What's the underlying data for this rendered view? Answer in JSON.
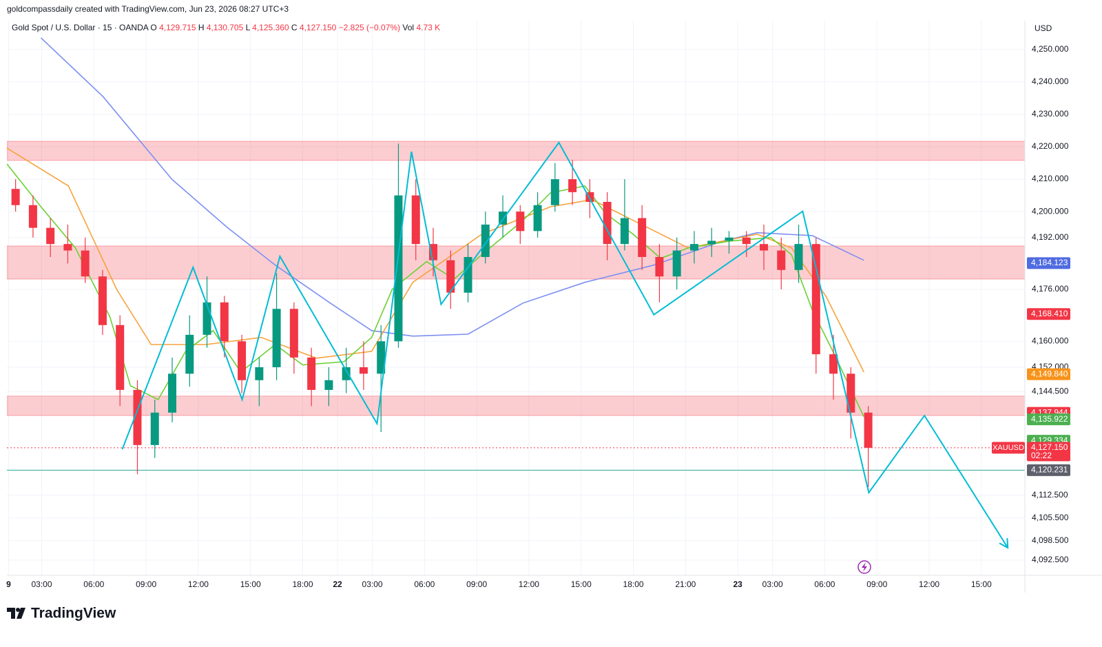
{
  "header": {
    "attribution": "goldcompassdaily created with TradingView.com, Jun 23, 2026 08:27 UTC+3"
  },
  "legend": {
    "symbol": "Gold Spot / U.S. Dollar · 15 · OANDA",
    "fields": [
      {
        "key": "O",
        "value": "4,129.715"
      },
      {
        "key": "H",
        "value": "4,130.705"
      },
      {
        "key": "L",
        "value": "4,125.360"
      },
      {
        "key": "C",
        "value": "4,127.150"
      }
    ],
    "change": "−2.825 (−0.07%)",
    "vol_key": "Vol",
    "vol": "4.73 K"
  },
  "chart_data": {
    "type": "candlestick",
    "currency": "USD",
    "x": [
      0.5,
      1.5,
      2.5,
      3.5,
      4.5,
      5.5,
      6.5,
      7.5,
      8.5,
      9.5,
      10.5,
      11.5,
      12.5,
      13.5,
      14.5,
      15.5,
      16.5,
      17.5,
      18.5,
      19.5,
      20.5,
      21.5,
      22.5,
      23.5,
      24.5,
      25.5,
      26.5,
      27.5,
      28.5,
      29.5,
      30.5,
      31.5,
      32.5,
      33.5,
      34.5,
      35.5,
      36.5,
      37.5,
      38.5,
      39.5,
      40.5,
      41.5,
      42.5,
      43.5,
      44.5,
      45.5,
      46.5,
      47.5,
      48.5,
      49.5
    ],
    "open": [
      4207,
      4202,
      4195,
      4190,
      4188,
      4180,
      4165,
      4145,
      4128,
      4138,
      4150,
      4162,
      4172,
      4160,
      4148,
      4152,
      4170,
      4155,
      4145,
      4148,
      4152,
      4150,
      4160,
      4205,
      4190,
      4185,
      4175,
      4186,
      4196,
      4200,
      4194,
      4202,
      4210,
      4206,
      4203,
      4190,
      4198,
      4186,
      4180,
      4188,
      4190,
      4191,
      4192,
      4190,
      4188,
      4182,
      4190,
      4156,
      4150,
      4138
    ],
    "high": [
      4210,
      4205,
      4198,
      4196,
      4192,
      4182,
      4168,
      4148,
      4142,
      4155,
      4168,
      4180,
      4174,
      4162,
      4155,
      4181,
      4172,
      4158,
      4152,
      4158,
      4160,
      4165,
      4221,
      4210,
      4195,
      4188,
      4190,
      4200,
      4205,
      4202,
      4206,
      4215,
      4216,
      4210,
      4206,
      4210,
      4202,
      4190,
      4192,
      4194,
      4195,
      4194,
      4194,
      4196,
      4192,
      4196,
      4192,
      4162,
      4152,
      4140
    ],
    "low": [
      4200,
      4192,
      4186,
      4184,
      4178,
      4162,
      4140,
      4119,
      4124,
      4135,
      4146,
      4158,
      4155,
      4144,
      4140,
      4148,
      4150,
      4140,
      4140,
      4144,
      4145,
      4132,
      4158,
      4185,
      4180,
      4170,
      4172,
      4184,
      4192,
      4190,
      4192,
      4200,
      4202,
      4198,
      4185,
      4188,
      4182,
      4172,
      4176,
      4184,
      4186,
      4187,
      4186,
      4182,
      4176,
      4178,
      4150,
      4142,
      4130,
      4115
    ],
    "close": [
      4202,
      4195,
      4190,
      4188,
      4180,
      4165,
      4145,
      4128,
      4138,
      4150,
      4162,
      4172,
      4160,
      4148,
      4152,
      4170,
      4155,
      4145,
      4148,
      4152,
      4150,
      4160,
      4205,
      4190,
      4185,
      4175,
      4186,
      4196,
      4200,
      4194,
      4202,
      4210,
      4206,
      4203,
      4190,
      4198,
      4186,
      4180,
      4188,
      4190,
      4191,
      4192,
      4190,
      4188,
      4182,
      4190,
      4156,
      4150,
      4138,
      4127.15
    ],
    "up_color": "#089981",
    "down_color": "#f23645",
    "xlim": [
      0,
      58.5
    ],
    "xticks": [
      {
        "value": 0.1,
        "label": "9"
      },
      {
        "value": 2,
        "label": "03:00"
      },
      {
        "value": 5,
        "label": "06:00"
      },
      {
        "value": 8,
        "label": "09:00"
      },
      {
        "value": 11,
        "label": "12:00"
      },
      {
        "value": 14,
        "label": "15:00"
      },
      {
        "value": 17,
        "label": "18:00"
      },
      {
        "value": 19,
        "label": "22"
      },
      {
        "value": 21,
        "label": "03:00"
      },
      {
        "value": 24,
        "label": "06:00"
      },
      {
        "value": 27,
        "label": "09:00"
      },
      {
        "value": 30,
        "label": "12:00"
      },
      {
        "value": 33,
        "label": "15:00"
      },
      {
        "value": 36,
        "label": "18:00"
      },
      {
        "value": 39,
        "label": "21:00"
      },
      {
        "value": 42,
        "label": "23"
      },
      {
        "value": 44,
        "label": "03:00"
      },
      {
        "value": 47,
        "label": "06:00"
      },
      {
        "value": 50,
        "label": "09:00"
      },
      {
        "value": 53,
        "label": "12:00"
      },
      {
        "value": 56,
        "label": "15:00"
      }
    ],
    "ylim": [
      4087.8,
      4258.9
    ],
    "yticks": [
      {
        "value": 4250,
        "label": "4,250.000"
      },
      {
        "value": 4240,
        "label": "4,240.000"
      },
      {
        "value": 4230,
        "label": "4,230.000"
      },
      {
        "value": 4220,
        "label": "4,220.000"
      },
      {
        "value": 4210,
        "label": "4,210.000"
      },
      {
        "value": 4200,
        "label": "4,200.000"
      },
      {
        "value": 4192,
        "label": "4,192.000"
      },
      {
        "value": 4176,
        "label": "4,176.000"
      },
      {
        "value": 4160,
        "label": "4,160.000"
      },
      {
        "value": 4152,
        "label": "4,152.000"
      },
      {
        "value": 4144.5,
        "label": "4,144.500"
      },
      {
        "value": 4112.5,
        "label": "4,112.500"
      },
      {
        "value": 4105.5,
        "label": "4,105.500"
      },
      {
        "value": 4098.5,
        "label": "4,098.500"
      },
      {
        "value": 4092.5,
        "label": "4,092.500"
      }
    ],
    "grid": true,
    "zone_color": "#f23645",
    "zones": [
      {
        "top": 4221.7,
        "bottom": 4215.8
      },
      {
        "top": 4189.4,
        "bottom": 4179.2
      },
      {
        "top": 4143.1,
        "bottom": 4137.1
      }
    ],
    "overlays": [
      {
        "color": "#7b8ff2",
        "x": [
          1.96,
          5.52,
          9.48,
          12.65,
          15.42,
          18.58,
          20.96,
          23.33,
          26.5,
          29.66,
          33.22,
          37.18,
          41.14,
          43.12,
          46.28,
          49.25
        ],
        "values": [
          4253.6,
          4235.5,
          4210,
          4195.2,
          4183.5,
          4171.8,
          4163.3,
          4161.6,
          4162.2,
          4171.8,
          4178.2,
          4183.5,
          4190.9,
          4193.5,
          4192.6,
          4185.0
        ]
      },
      {
        "color": "#f7a23b",
        "x": [
          0,
          3.54,
          6.31,
          8.29,
          11.46,
          14.62,
          17.79,
          20.96,
          23.33,
          27.29,
          31.24,
          33.62,
          35.99,
          39.16,
          43.12,
          45.09,
          47.07,
          49.25
        ],
        "values": [
          4219.6,
          4207.9,
          4176.0,
          4159.0,
          4159.0,
          4161.2,
          4154.8,
          4156.9,
          4178.2,
          4193.0,
          4201.5,
          4203.7,
          4197.3,
          4188.8,
          4193.0,
          4188.8,
          4173.9,
          4150.5
        ]
      },
      {
        "color": "#6ad132",
        "x": [
          0,
          1.96,
          3.94,
          5.92,
          7.1,
          8.69,
          10.27,
          11.85,
          13.44,
          15.42,
          17.0,
          19.37,
          20.96,
          22.14,
          24.12,
          25.7,
          27.29,
          29.66,
          31.24,
          33.22,
          34.41,
          35.99,
          37.57,
          39.16,
          41.53,
          43.91,
          45.09,
          46.28,
          47.47,
          49.25
        ],
        "values": [
          4214.7,
          4201.5,
          4188.8,
          4167.5,
          4146.3,
          4142.0,
          4156.9,
          4163.3,
          4150.5,
          4159.0,
          4152.7,
          4153.7,
          4161.2,
          4176.0,
          4184.6,
          4179.2,
          4186.7,
          4197.3,
          4205.8,
          4207.9,
          4199.4,
          4193.0,
          4185.6,
          4188.8,
          4190.9,
          4192.0,
          4186.7,
          4169.7,
          4156.9,
          4136.7
        ]
      }
    ],
    "zigzag": {
      "color": "#00bcd4",
      "x": [
        6.63,
        10.7,
        13.52,
        15.69,
        21.27,
        23.25,
        24.95,
        31.72,
        37.18,
        45.73,
        49.53,
        52.73,
        57.52
      ],
      "values": [
        4126.7,
        4182.8,
        4142.0,
        4186.2,
        4134.6,
        4218.5,
        4171.4,
        4221.3,
        4168.2,
        4200.1,
        4113.3,
        4137.1,
        4096.3
      ]
    },
    "price_lines": [
      {
        "value": 4127.15,
        "color": "#f23645",
        "dashed": true
      },
      {
        "value": 4120.231,
        "color": "#26a69a",
        "dashed": false
      }
    ],
    "price_labels": [
      {
        "value": 4184.123,
        "label": "4,184.123",
        "color": "#4f6be0"
      },
      {
        "value": 4168.41,
        "label": "4,168.410",
        "color": "#f23645"
      },
      {
        "value": 4149.84,
        "label": "4,149.840",
        "color": "#f7931a"
      },
      {
        "value": 4137.944,
        "label": "4,137.944",
        "color": "#f23645"
      },
      {
        "value": 4135.922,
        "label": "4,135.922",
        "color": "#4caf50"
      },
      {
        "value": 4129.334,
        "label": "4,129.334",
        "color": "#4caf50"
      },
      {
        "value": 4120.231,
        "label": "4,120.231",
        "color": "#5d606b"
      },
      {
        "value": 4127.15,
        "label": "4,127.150",
        "color": "#f23645",
        "countdown": "02:22",
        "symbol": "XAUUSD"
      }
    ]
  },
  "footer": {
    "logo": "TradingView"
  }
}
